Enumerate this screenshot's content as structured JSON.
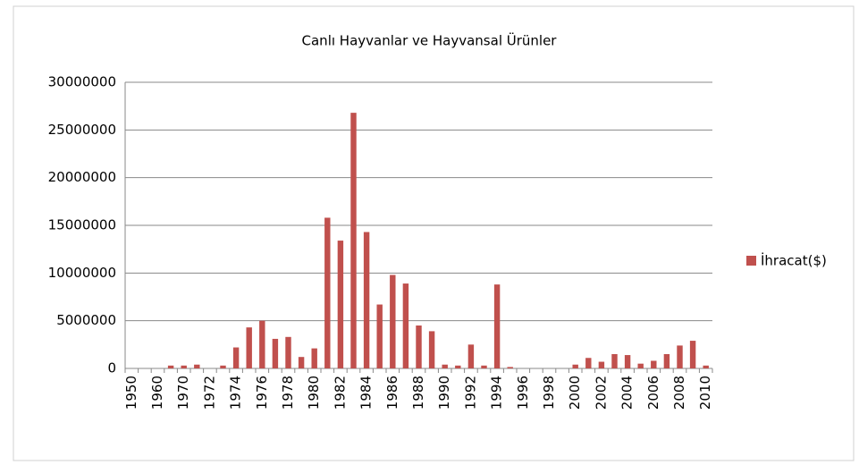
{
  "chart_data": {
    "type": "bar",
    "title": "Canlı Hayvanlar ve Hayvansal Ürünler",
    "categories": [
      "1950",
      null,
      "1960",
      null,
      "1970",
      null,
      "1972",
      null,
      "1974",
      null,
      "1976",
      null,
      "1978",
      null,
      "1980",
      null,
      "1982",
      null,
      "1984",
      null,
      "1986",
      null,
      "1988",
      null,
      "1990",
      null,
      "1992",
      null,
      "1994",
      null,
      "1996",
      null,
      "1998",
      null,
      "2000",
      null,
      "2002",
      null,
      "2004",
      null,
      "2006",
      null,
      "2008",
      null,
      "2010"
    ],
    "series": [
      {
        "name": "İhracat($)",
        "color": "#c0504d",
        "values": [
          0,
          0,
          0,
          300000,
          300000,
          400000,
          0,
          300000,
          2200000,
          4300000,
          5000000,
          3100000,
          3300000,
          1200000,
          2100000,
          15800000,
          13400000,
          26800000,
          14300000,
          6700000,
          9800000,
          8900000,
          4500000,
          3900000,
          400000,
          300000,
          2500000,
          300000,
          8800000,
          150000,
          0,
          0,
          0,
          0,
          400000,
          1100000,
          700000,
          1500000,
          1400000,
          500000,
          800000,
          1500000,
          2400000,
          2900000,
          300000
        ]
      }
    ],
    "ylim": [
      0,
      30000000
    ],
    "yticks": [
      0,
      5000000,
      10000000,
      15000000,
      20000000,
      25000000,
      30000000
    ],
    "grid": true,
    "legend": "right"
  }
}
